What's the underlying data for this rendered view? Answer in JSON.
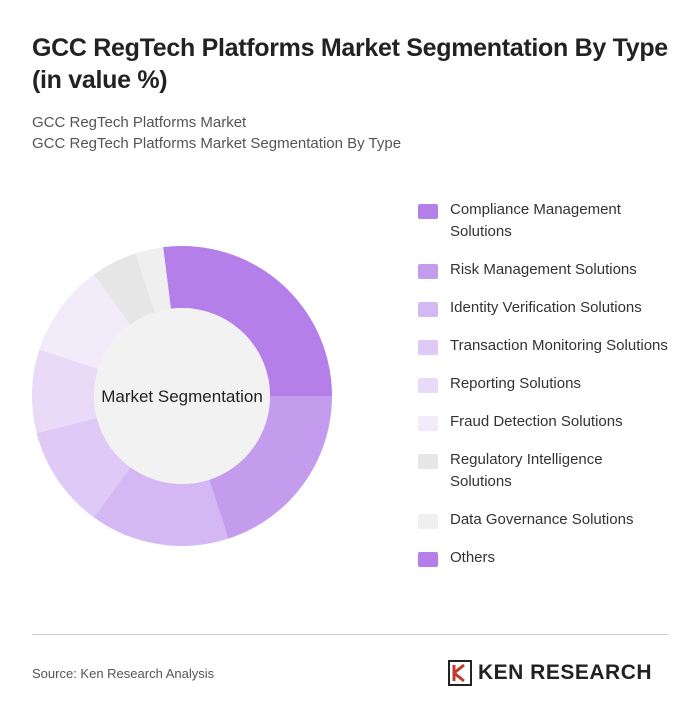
{
  "chart_data": {
    "type": "donut",
    "title": "GCC RegTech Platforms Market Segmentation By Type (in value %)",
    "subtitle": [
      "GCC RegTech Platforms Market",
      "GCC RegTech Platforms Market Segmentation By Type"
    ],
    "center_label": "Market Segmentation",
    "categories": [
      "Compliance Management Solutions",
      "Risk Management Solutions",
      "Identity Verification Solutions",
      "Transaction Monitoring Solutions",
      "Reporting Solutions",
      "Fraud Detection Solutions",
      "Regulatory Intelligence Solutions",
      "Data Governance Solutions",
      "Others"
    ],
    "values": [
      25,
      20,
      15,
      11,
      9,
      10,
      5,
      3,
      2
    ],
    "colors": [
      "#b47fe9",
      "#c49cee",
      "#d4b8f3",
      "#dfc9f6",
      "#e9dbf8",
      "#f2ecfa",
      "#e6e6e6",
      "#efefef",
      "#b47fe9"
    ],
    "source": "Source: Ken Research Analysis",
    "brand": "KEN RESEARCH"
  }
}
